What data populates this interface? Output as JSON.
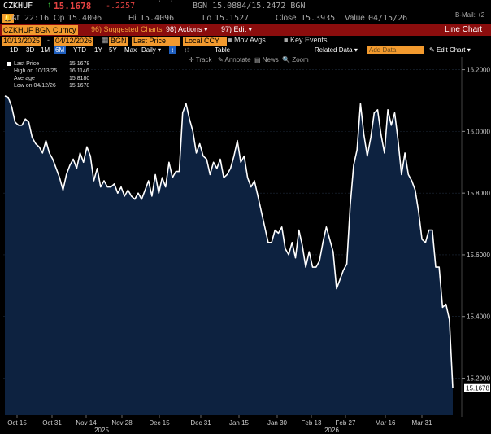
{
  "header": {
    "ticker": "CZKHUF",
    "last": "15.1678",
    "change": "-.2257",
    "bid_ask": "BGN 15.0884/15.2472 BGN",
    "bmail": "B-Mail: +2"
  },
  "quote": {
    "at_label": "At",
    "at": "22:16",
    "op_label": "Op",
    "op": "15.4096",
    "hi_label": "Hi",
    "hi": "15.4096",
    "lo_label": "Lo",
    "lo": "15.1527",
    "close_label": "Close",
    "close": "15.3935",
    "value_label": "Value",
    "value": "04/15/26"
  },
  "toolbar": {
    "security": "CZKHUF BGN Curncy",
    "suggested": "Suggested Charts",
    "actions": "Actions",
    "edit": "Edit",
    "title": "Line Chart"
  },
  "controls": {
    "start_date": "10/13/2025",
    "end_date": "04/12/2026",
    "source": "BGN",
    "price": "Last Price",
    "currency": "Local CCY",
    "mov_avgs": "Mov Avgs",
    "key_events": "Key Events"
  },
  "periods": {
    "items": [
      "1D",
      "3D",
      "1M",
      "6M",
      "YTD",
      "1Y",
      "5Y",
      "Max"
    ],
    "active": "6M",
    "frequency": "Daily",
    "table": "Table",
    "related": "Related Data",
    "add_data": "Add Data",
    "edit_chart": "Edit Chart"
  },
  "tools": {
    "track": "Track",
    "annotate": "Annotate",
    "news": "News",
    "zoom": "Zoom"
  },
  "legend": {
    "rows": [
      {
        "label": "Last Price",
        "value": "15.1678"
      },
      {
        "label": "High on 10/13/25",
        "value": "16.1146"
      },
      {
        "label": "Average",
        "value": "15.8180"
      },
      {
        "label": "Low on 04/12/26",
        "value": "15.1678"
      }
    ]
  },
  "chart_data": {
    "type": "area",
    "x_tick_labels": [
      "Oct 15",
      "Oct 31",
      "Nov 14",
      "Nov 28",
      "Dec 15",
      "Dec 31",
      "Jan 15",
      "Jan 30",
      "Feb 13",
      "Feb 27",
      "Mar 16",
      "Mar 31"
    ],
    "year_labels": [
      "2025",
      "2026"
    ],
    "y_ticks": [
      "16.2000",
      "16.0000",
      "15.8000",
      "15.6000",
      "15.4000",
      "15.2000"
    ],
    "ylim": [
      15.08,
      16.22
    ],
    "last_value_label": "15.1678",
    "line_color": "#ffffff",
    "fill_color": "#0d2240",
    "values": [
      16.1146,
      16.11,
      16.08,
      16.03,
      16.02,
      16.02,
      16.04,
      16.03,
      15.98,
      15.96,
      15.95,
      15.93,
      15.97,
      15.93,
      15.91,
      15.88,
      15.85,
      15.81,
      15.86,
      15.89,
      15.91,
      15.88,
      15.93,
      15.9,
      15.95,
      15.92,
      15.84,
      15.88,
      15.82,
      15.84,
      15.82,
      15.82,
      15.83,
      15.8,
      15.82,
      15.79,
      15.81,
      15.79,
      15.78,
      15.8,
      15.78,
      15.81,
      15.84,
      15.79,
      15.86,
      15.8,
      15.85,
      15.82,
      15.9,
      15.85,
      15.87,
      15.87,
      16.06,
      16.09,
      16.04,
      16.0,
      15.93,
      15.96,
      15.92,
      15.91,
      15.86,
      15.9,
      15.88,
      15.91,
      15.85,
      15.86,
      15.88,
      15.92,
      15.97,
      15.9,
      15.92,
      15.85,
      15.82,
      15.84,
      15.79,
      15.74,
      15.69,
      15.64,
      15.64,
      15.68,
      15.67,
      15.69,
      15.62,
      15.6,
      15.64,
      15.59,
      15.68,
      15.63,
      15.56,
      15.61,
      15.56,
      15.56,
      15.58,
      15.64,
      15.69,
      15.65,
      15.61,
      15.49,
      15.52,
      15.55,
      15.57,
      15.76,
      15.89,
      15.94,
      16.09,
      15.99,
      15.92,
      15.98,
      16.06,
      16.07,
      15.99,
      15.93,
      16.07,
      16.02,
      16.06,
      15.97,
      15.86,
      15.93,
      15.86,
      15.84,
      15.81,
      15.74,
      15.65,
      15.64,
      15.68,
      15.68,
      15.56,
      15.56,
      15.43,
      15.44,
      15.39,
      15.1678
    ]
  }
}
